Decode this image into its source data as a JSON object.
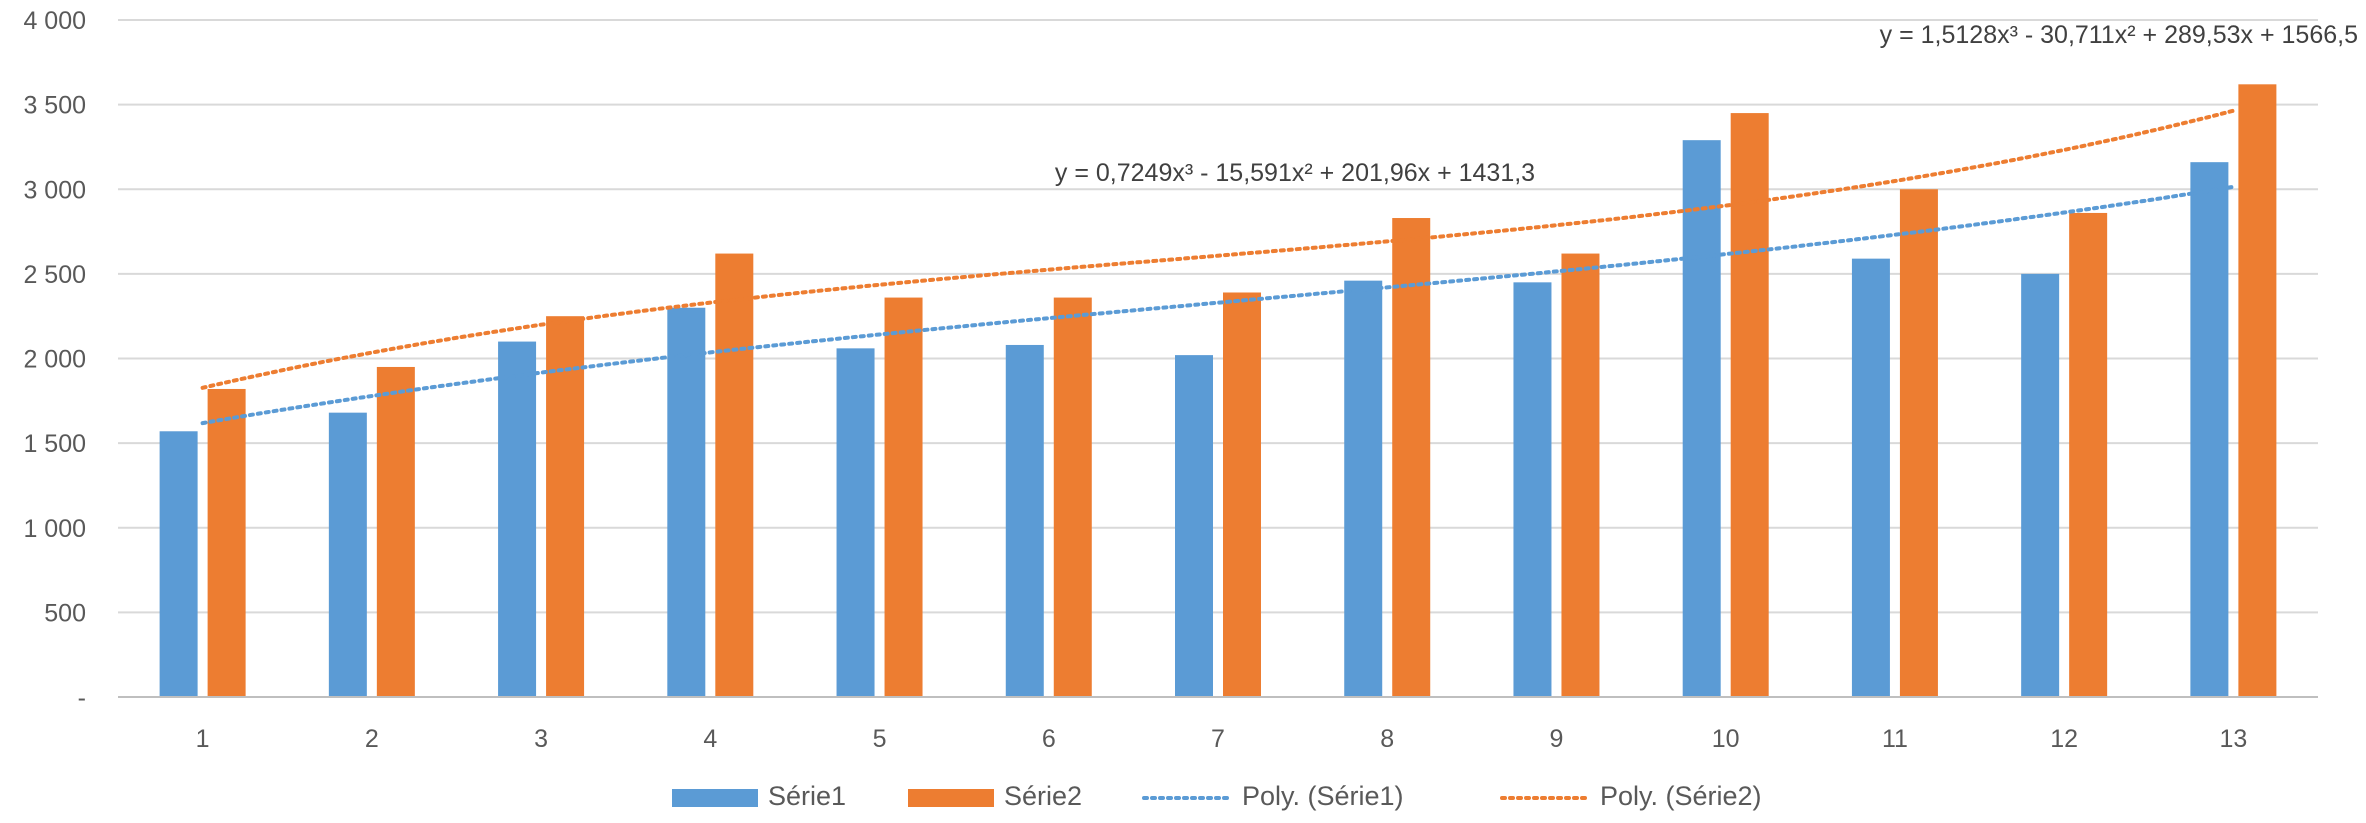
{
  "chart_data": {
    "type": "bar",
    "categories": [
      "1",
      "2",
      "3",
      "4",
      "5",
      "6",
      "7",
      "8",
      "9",
      "10",
      "11",
      "12",
      "13"
    ],
    "series": [
      {
        "name": "Série1",
        "values": [
          1570,
          1680,
          2100,
          2300,
          2060,
          2080,
          2020,
          2460,
          2450,
          3290,
          2590,
          2500,
          3160
        ]
      },
      {
        "name": "Série2",
        "values": [
          1820,
          1950,
          2250,
          2620,
          2360,
          2360,
          2390,
          2830,
          2620,
          3450,
          3000,
          2860,
          3620
        ]
      }
    ],
    "trendlines": [
      {
        "name": "Poly. (Série1)",
        "series": "Série1",
        "type": "polynomial",
        "order": 3,
        "coefficients": [
          0.7249,
          -15.591,
          201.96,
          1431.3
        ],
        "equation": "y = 0,7249x³ - 15,591x² + 201,96x + 1431,3"
      },
      {
        "name": "Poly. (Série2)",
        "series": "Série2",
        "type": "polynomial",
        "order": 3,
        "coefficients": [
          1.5128,
          -30.711,
          289.53,
          1566.5
        ],
        "equation": "y = 1,5128x³ - 30,711x² + 289,53x + 1566,5"
      }
    ],
    "ylim": [
      0,
      4000
    ],
    "yticks": [
      0,
      500,
      1000,
      1500,
      2000,
      2500,
      3000,
      3500,
      4000
    ],
    "ytick_labels": [
      "-",
      "500",
      "1 000",
      "1 500",
      "2 000",
      "2 500",
      "3 000",
      "3 500",
      "4 000"
    ],
    "grid": true,
    "legend_position": "bottom",
    "title": "",
    "xlabel": "",
    "ylabel": "",
    "colors": {
      "Série1": "#5B9BD5",
      "Série2": "#ED7D31",
      "grid": "#D9D9D9",
      "axis": "#BFBFBF",
      "text": "#595959"
    }
  }
}
